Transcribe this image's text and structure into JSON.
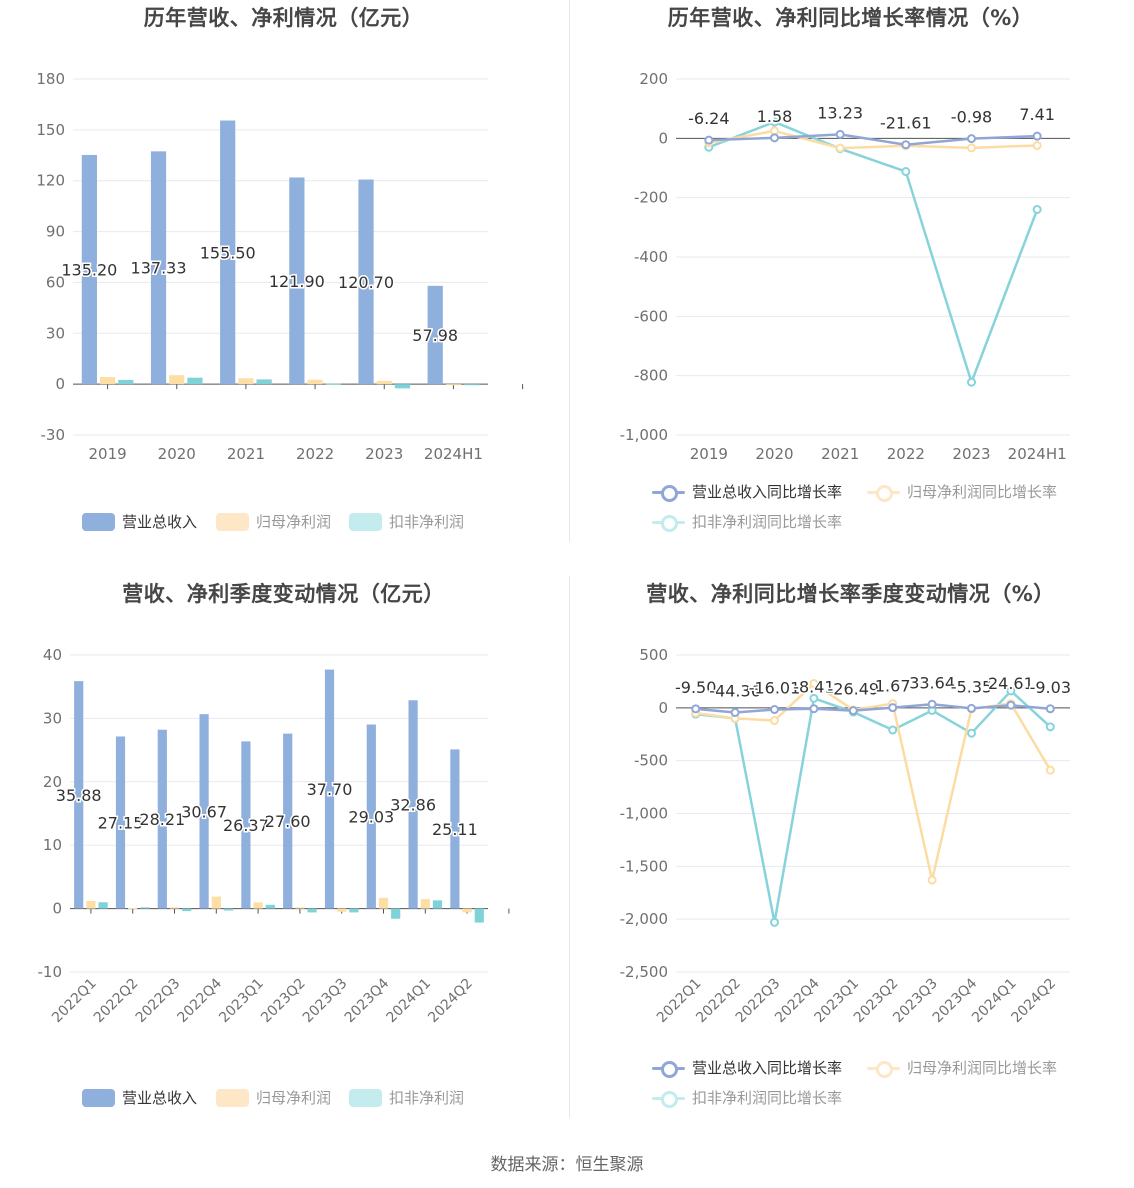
{
  "source_text": "数据来源：恒生聚源",
  "colors": {
    "revenue": "#8fafdc",
    "net_profit": "#fddfa6",
    "deducted": "#7fd3d8",
    "line_revenue": "#8fa6d6",
    "line_net": "#fcdca2",
    "line_deducted": "#86d4da",
    "grid": "#e6e9f0",
    "axis_text": "#707070",
    "label_text": "#333333"
  },
  "panels": [
    {
      "title": "历年营收、净利情况（亿元）",
      "legend": [
        "营业总收入",
        "归母净利润",
        "扣非净利润"
      ]
    },
    {
      "title": "历年营收、净利同比增长率情况（%）",
      "legend": [
        "营业总收入同比增长率",
        "归母净利润同比增长率",
        "扣非净利润同比增长率"
      ]
    },
    {
      "title": "营收、净利季度变动情况（亿元）",
      "legend": [
        "营业总收入",
        "归母净利润",
        "扣非净利润"
      ]
    },
    {
      "title": "营收、净利同比增长率季度变动情况（%）",
      "legend": [
        "营业总收入同比增长率",
        "归母净利润同比增长率",
        "扣非净利润同比增长率"
      ]
    }
  ],
  "chart_data": [
    {
      "type": "bar",
      "title": "历年营收、净利情况（亿元）",
      "categories": [
        "2019",
        "2020",
        "2021",
        "2022",
        "2023",
        "2024H1"
      ],
      "ylim": [
        -30,
        180
      ],
      "yticks": [
        -30,
        0,
        30,
        60,
        90,
        120,
        150,
        180
      ],
      "series": [
        {
          "name": "营业总收入",
          "values": [
            135.2,
            137.33,
            155.5,
            121.9,
            120.7,
            57.98
          ],
          "labels": [
            "135.20",
            "137.33",
            "155.50",
            "121.90",
            "120.70",
            "57.98"
          ]
        },
        {
          "name": "归母净利润",
          "values": [
            4.2,
            5.3,
            3.5,
            2.6,
            1.9,
            -0.5
          ]
        },
        {
          "name": "扣非净利润",
          "values": [
            2.5,
            3.8,
            2.8,
            0.3,
            -2.5,
            -0.6
          ]
        }
      ]
    },
    {
      "type": "line",
      "title": "历年营收、净利同比增长率情况（%）",
      "categories": [
        "2019",
        "2020",
        "2021",
        "2022",
        "2023",
        "2024H1"
      ],
      "ylim": [
        -1000,
        200
      ],
      "yticks": [
        -1000,
        -800,
        -600,
        -400,
        -200,
        0,
        200
      ],
      "tick_labels": [
        "-1,000",
        "-800",
        "-600",
        "-400",
        "-200",
        "0",
        "200"
      ],
      "series": [
        {
          "name": "营业总收入同比增长率",
          "values": [
            -6.24,
            1.58,
            13.23,
            -21.61,
            -0.98,
            7.41
          ],
          "labels": [
            "-6.24",
            "1.58",
            "13.23",
            "-21.61",
            "-0.98",
            "7.41"
          ]
        },
        {
          "name": "归母净利润同比增长率",
          "values": [
            -15,
            25,
            -33,
            -25,
            -32,
            -24
          ]
        },
        {
          "name": "扣非净利润同比增长率",
          "values": [
            -30,
            55,
            -35,
            -112,
            -822,
            -240
          ]
        }
      ]
    },
    {
      "type": "bar",
      "title": "营收、净利季度变动情况（亿元）",
      "categories": [
        "2022Q1",
        "2022Q2",
        "2022Q3",
        "2022Q4",
        "2023Q1",
        "2023Q2",
        "2023Q3",
        "2023Q4",
        "2024Q1",
        "2024Q2"
      ],
      "ylim": [
        -10,
        40
      ],
      "yticks": [
        -10,
        0,
        10,
        20,
        30,
        40
      ],
      "series": [
        {
          "name": "营业总收入",
          "values": [
            35.88,
            27.15,
            28.21,
            30.67,
            26.37,
            27.6,
            37.7,
            29.03,
            32.86,
            25.11
          ],
          "labels": [
            "35.88",
            "27.15",
            "28.21",
            "30.67",
            "26.37",
            "27.60",
            "37.70",
            "29.03",
            "32.86",
            "25.11"
          ]
        },
        {
          "name": "归母净利润",
          "values": [
            1.2,
            0.1,
            0.2,
            1.9,
            1.0,
            0.2,
            -0.5,
            1.7,
            1.5,
            -0.6
          ]
        },
        {
          "name": "扣非净利润",
          "values": [
            1.0,
            0.2,
            -0.4,
            -0.3,
            0.6,
            -0.6,
            -0.6,
            -1.6,
            1.3,
            -2.2
          ]
        }
      ]
    },
    {
      "type": "line",
      "title": "营收、净利同比增长率季度变动情况（%）",
      "categories": [
        "2022Q1",
        "2022Q2",
        "2022Q3",
        "2022Q4",
        "2023Q1",
        "2023Q2",
        "2023Q3",
        "2023Q4",
        "2024Q1",
        "2024Q2"
      ],
      "ylim": [
        -2500,
        500
      ],
      "yticks": [
        -2500,
        -2000,
        -1500,
        -1000,
        -500,
        0,
        500
      ],
      "tick_labels": [
        "-2,500",
        "-2,000",
        "-1,500",
        "-1,000",
        "-500",
        "0",
        "500"
      ],
      "series": [
        {
          "name": "营业总收入同比增长率",
          "values": [
            -9.5,
            -44.36,
            -16.01,
            -8.41,
            -26.49,
            1.67,
            33.64,
            -5.35,
            24.61,
            -9.03
          ],
          "labels": [
            "-9.50",
            "-44.36",
            "-16.01",
            "-8.41",
            "-26.49",
            "1.67",
            "33.64",
            "-5.35",
            "24.61",
            "-9.03"
          ]
        },
        {
          "name": "归母净利润同比增长率",
          "values": [
            -50,
            -100,
            -120,
            230,
            -20,
            40,
            -1630,
            -10,
            40,
            -590
          ]
        },
        {
          "name": "扣非净利润同比增长率",
          "values": [
            -60,
            -100,
            -2030,
            90,
            -40,
            -210,
            -25,
            -240,
            160,
            -180
          ]
        }
      ]
    }
  ]
}
